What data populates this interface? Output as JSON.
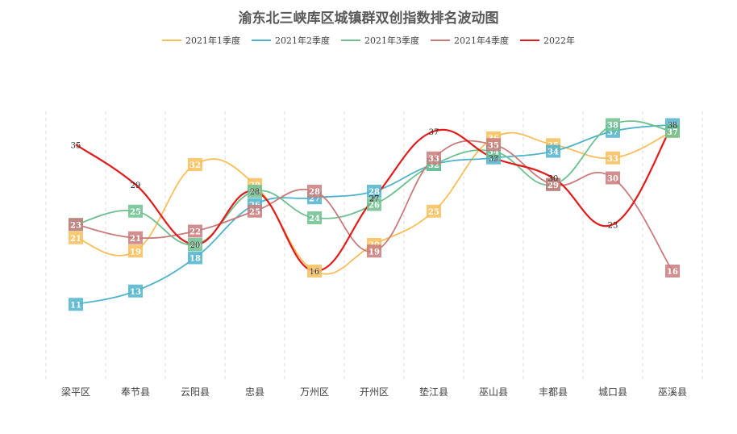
{
  "chart_data": {
    "type": "line",
    "title": "渝东北三峡库区城镇群双创指数排名波动图",
    "categories": [
      "梁平区",
      "奉节县",
      "云阳县",
      "忠县",
      "万州区",
      "开州区",
      "垫江县",
      "巫山县",
      "丰都县",
      "城口县",
      "巫溪县"
    ],
    "series": [
      {
        "name": "2021年1季度",
        "color": "#F8BE5A",
        "values": [
          21,
          19,
          32,
          29,
          16,
          20,
          25,
          36,
          35,
          33,
          37
        ]
      },
      {
        "name": "2021年2季度",
        "color": "#4FB3CC",
        "values": [
          11,
          13,
          18,
          26,
          27,
          28,
          32,
          33,
          34,
          37,
          38
        ]
      },
      {
        "name": "2021年3季度",
        "color": "#6DC08F",
        "values": [
          23,
          25,
          20,
          28,
          24,
          26,
          32,
          34,
          29,
          38,
          37
        ]
      },
      {
        "name": "2021年4季度",
        "color": "#C97B7B",
        "values": [
          23,
          21,
          22,
          25,
          28,
          19,
          33,
          35,
          29,
          30,
          16
        ]
      },
      {
        "name": "2022年",
        "color": "#E21B1B",
        "values": [
          35,
          29,
          20,
          28,
          16,
          27,
          37,
          33,
          30,
          23,
          38
        ]
      }
    ],
    "ylim": [
      0,
      40
    ],
    "grid": "vertical dashed",
    "legend": "top-center"
  }
}
